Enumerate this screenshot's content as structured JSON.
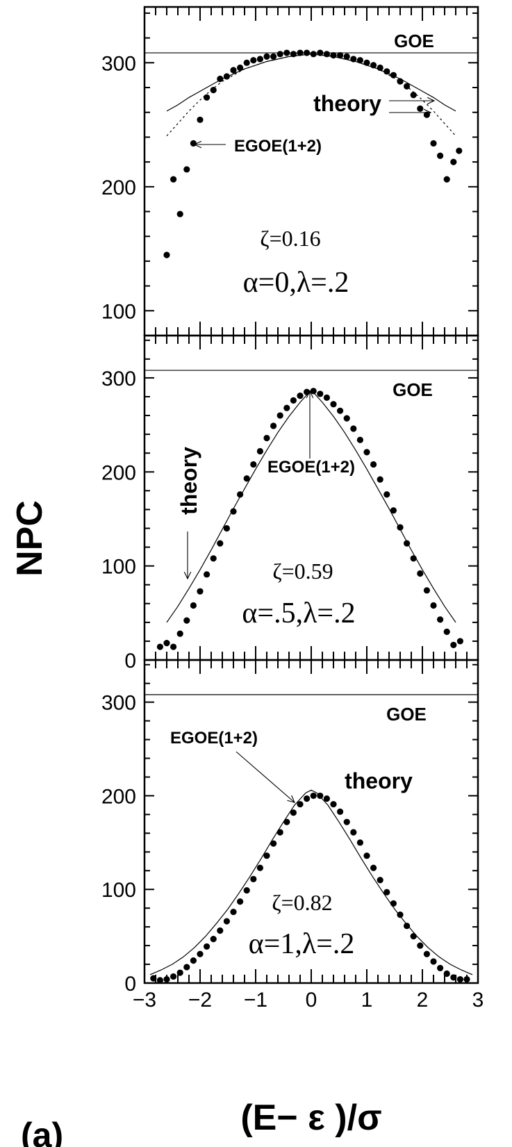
{
  "figure": {
    "ylabel": "NPC",
    "xlabel": "(E− ε )/σ",
    "panel_label": "(a)"
  },
  "chart_data": [
    {
      "type": "scatter",
      "panel": "top",
      "xlim": [
        -3,
        3
      ],
      "ylim": [
        80,
        345
      ],
      "yticks": [
        100,
        200,
        300
      ],
      "grid": false,
      "goe_level": 308,
      "labels": {
        "goe": "GOE",
        "theory": "theory",
        "egoe": "EGOE(1+2)",
        "zeta": "ζ=0.16",
        "params": "α=0,λ=.2"
      },
      "series": [
        {
          "name": "EGOE(1+2)",
          "style": "dots",
          "x": [
            -2.6,
            -2.48,
            -2.36,
            -2.24,
            -2.12,
            -2.0,
            -1.88,
            -1.76,
            -1.64,
            -1.52,
            -1.4,
            -1.28,
            -1.16,
            -1.04,
            -0.92,
            -0.8,
            -0.68,
            -0.56,
            -0.44,
            -0.32,
            -0.2,
            -0.08,
            0.04,
            0.16,
            0.28,
            0.4,
            0.52,
            0.64,
            0.76,
            0.88,
            1.0,
            1.12,
            1.24,
            1.36,
            1.48,
            1.6,
            1.72,
            1.84,
            1.96,
            2.08,
            2.2,
            2.32,
            2.44,
            2.56,
            2.66
          ],
          "y": [
            145,
            206,
            178,
            214,
            235,
            254,
            272,
            278,
            287,
            289,
            294,
            296,
            300,
            302,
            303,
            305,
            305,
            307,
            308,
            307,
            308,
            308,
            307,
            308,
            307,
            306,
            306,
            305,
            303,
            302,
            300,
            298,
            296,
            293,
            290,
            285,
            281,
            274,
            263,
            258,
            235,
            225,
            206,
            220,
            229
          ]
        },
        {
          "name": "theory",
          "style": "solid",
          "x": [
            -2.6,
            -2.4,
            -2.2,
            -2.0,
            -1.8,
            -1.6,
            -1.4,
            -1.2,
            -1.0,
            -0.8,
            -0.6,
            -0.4,
            -0.2,
            0.0,
            0.2,
            0.4,
            0.6,
            0.8,
            1.0,
            1.2,
            1.4,
            1.6,
            1.8,
            2.0,
            2.2,
            2.4,
            2.6
          ],
          "y": [
            261,
            266,
            272,
            277,
            282,
            287,
            291,
            295,
            298,
            301,
            303,
            305,
            306,
            307,
            306,
            305,
            303,
            301,
            298,
            295,
            291,
            287,
            282,
            277,
            272,
            266,
            261
          ]
        },
        {
          "name": "theory",
          "style": "dashed",
          "x": [
            -2.6,
            -2.4,
            -2.2,
            -2.0,
            -1.8,
            -1.6,
            -1.4,
            -1.2,
            -1.0,
            -0.8,
            -0.6,
            -0.4,
            -0.2,
            0.0,
            0.2,
            0.4,
            0.6,
            0.8,
            1.0,
            1.2,
            1.4,
            1.6,
            1.8,
            2.0,
            2.2,
            2.4,
            2.6
          ],
          "y": [
            241,
            251,
            261,
            270,
            278,
            285,
            290,
            295,
            298,
            301,
            303,
            305,
            306,
            307,
            306,
            305,
            303,
            301,
            298,
            295,
            290,
            285,
            278,
            270,
            261,
            251,
            241
          ]
        }
      ]
    },
    {
      "type": "scatter",
      "panel": "middle",
      "xlim": [
        -3,
        3
      ],
      "ylim": [
        0,
        345
      ],
      "yticks": [
        0,
        100,
        200,
        300
      ],
      "grid": false,
      "goe_level": 308,
      "labels": {
        "goe": "GOE",
        "theory": "theory",
        "egoe": "EGOE(1+2)",
        "zeta": "ζ=0.59",
        "params": "α=.5,λ=.2"
      },
      "series": [
        {
          "name": "EGOE(1+2)",
          "style": "dots",
          "x": [
            -2.72,
            -2.6,
            -2.48,
            -2.36,
            -2.24,
            -2.12,
            -2.0,
            -1.88,
            -1.76,
            -1.64,
            -1.52,
            -1.4,
            -1.28,
            -1.16,
            -1.04,
            -0.92,
            -0.8,
            -0.68,
            -0.56,
            -0.44,
            -0.32,
            -0.2,
            -0.08,
            0.04,
            0.16,
            0.28,
            0.4,
            0.52,
            0.64,
            0.76,
            0.88,
            1.0,
            1.12,
            1.24,
            1.36,
            1.48,
            1.6,
            1.72,
            1.84,
            1.96,
            2.08,
            2.2,
            2.32,
            2.44,
            2.56,
            2.68
          ],
          "y": [
            14,
            18,
            14,
            28,
            42,
            58,
            73,
            91,
            108,
            124,
            140,
            158,
            176,
            193,
            208,
            222,
            236,
            249,
            260,
            268,
            276,
            281,
            285,
            286,
            283,
            279,
            272,
            265,
            257,
            246,
            234,
            221,
            208,
            192,
            176,
            159,
            141,
            124,
            108,
            92,
            74,
            58,
            43,
            30,
            16,
            20
          ]
        },
        {
          "name": "theory",
          "style": "solid",
          "x": [
            -2.6,
            -2.4,
            -2.2,
            -2.0,
            -1.8,
            -1.6,
            -1.4,
            -1.2,
            -1.0,
            -0.8,
            -0.6,
            -0.4,
            -0.2,
            0.0,
            0.2,
            0.4,
            0.6,
            0.8,
            1.0,
            1.2,
            1.4,
            1.6,
            1.8,
            2.0,
            2.2,
            2.4,
            2.6
          ],
          "y": [
            40,
            57,
            76,
            96,
            117,
            139,
            161,
            182,
            203,
            223,
            242,
            259,
            274,
            287,
            274,
            259,
            242,
            223,
            203,
            182,
            161,
            139,
            117,
            96,
            76,
            57,
            40
          ]
        }
      ]
    },
    {
      "type": "scatter",
      "panel": "bottom",
      "xlim": [
        -3,
        3
      ],
      "ylim": [
        0,
        345
      ],
      "yticks": [
        0,
        100,
        200,
        300
      ],
      "xticks": [
        -3,
        -2,
        -1,
        0,
        1,
        2,
        3
      ],
      "grid": false,
      "goe_level": 308,
      "labels": {
        "goe": "GOE",
        "theory": "theory",
        "egoe": "EGOE(1+2)",
        "zeta": "ζ=0.82",
        "params": "α=1,λ=.2"
      },
      "series": [
        {
          "name": "EGOE(1+2)",
          "style": "dots",
          "x": [
            -2.84,
            -2.72,
            -2.6,
            -2.48,
            -2.36,
            -2.24,
            -2.12,
            -2.0,
            -1.88,
            -1.76,
            -1.64,
            -1.52,
            -1.4,
            -1.28,
            -1.16,
            -1.04,
            -0.92,
            -0.8,
            -0.68,
            -0.56,
            -0.44,
            -0.32,
            -0.2,
            -0.08,
            0.04,
            0.16,
            0.28,
            0.4,
            0.52,
            0.64,
            0.76,
            0.88,
            1.0,
            1.12,
            1.24,
            1.36,
            1.48,
            1.6,
            1.72,
            1.84,
            1.96,
            2.08,
            2.2,
            2.32,
            2.44,
            2.56,
            2.68,
            2.8
          ],
          "y": [
            5,
            3,
            4,
            7,
            11,
            17,
            24,
            31,
            39,
            47,
            56,
            66,
            76,
            87,
            99,
            111,
            123,
            136,
            149,
            161,
            172,
            182,
            191,
            197,
            200,
            200,
            197,
            191,
            183,
            172,
            161,
            150,
            136,
            123,
            110,
            97,
            85,
            73,
            61,
            50,
            40,
            31,
            23,
            16,
            10,
            6,
            4,
            4
          ]
        },
        {
          "name": "theory",
          "style": "solid",
          "x": [
            -2.9,
            -2.7,
            -2.5,
            -2.3,
            -2.1,
            -1.9,
            -1.7,
            -1.5,
            -1.3,
            -1.1,
            -0.9,
            -0.7,
            -0.5,
            -0.3,
            -0.1,
            0.0,
            0.1,
            0.3,
            0.5,
            0.7,
            0.9,
            1.1,
            1.3,
            1.5,
            1.7,
            1.9,
            2.1,
            2.3,
            2.5,
            2.7,
            2.9
          ],
          "y": [
            9,
            14,
            20,
            28,
            38,
            50,
            64,
            79,
            96,
            114,
            133,
            153,
            172,
            190,
            203,
            206,
            203,
            190,
            172,
            153,
            133,
            114,
            96,
            79,
            64,
            50,
            38,
            28,
            20,
            14,
            9
          ]
        }
      ]
    }
  ]
}
